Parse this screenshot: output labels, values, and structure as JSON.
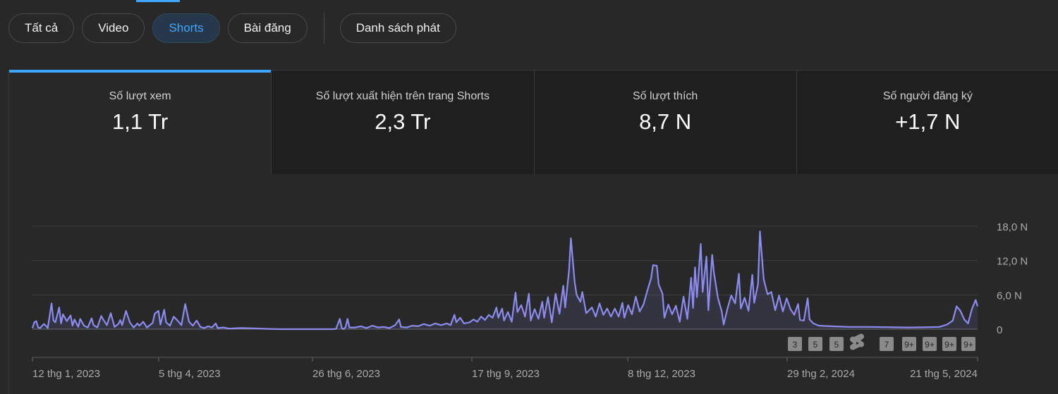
{
  "tabs": {
    "items": [
      {
        "label": "Tất cả",
        "active": false
      },
      {
        "label": "Video",
        "active": false
      },
      {
        "label": "Shorts",
        "active": true
      },
      {
        "label": "Bài đăng",
        "active": false
      }
    ],
    "playlist_label": "Danh sách phát"
  },
  "metrics": [
    {
      "label": "Số lượt xem",
      "value": "1,1 Tr",
      "active": true
    },
    {
      "label": "Số lượt xuất hiện trên trang Shorts",
      "value": "2,3 Tr",
      "active": false
    },
    {
      "label": "Số lượt thích",
      "value": "8,7 N",
      "active": false
    },
    {
      "label": "Số người đăng ký",
      "value": "+1,7 N",
      "active": false
    }
  ],
  "colors": {
    "accent": "#3ea6ff",
    "line": "#8d8bf0",
    "background": "#282828",
    "card": "#1f1f1f"
  },
  "chart_data": {
    "type": "area",
    "metric": "Số lượt xem",
    "x_range": [
      "2023-01-12",
      "2024-05-21"
    ],
    "ylim": [
      0,
      18000
    ],
    "y_ticks": [
      "0",
      "6,0 N",
      "12,0 N",
      "18,0 N"
    ],
    "x_ticks": [
      "12 thg 1, 2023",
      "5 thg 4, 2023",
      "26 thg 6, 2023",
      "17 thg 9, 2023",
      "8 thg 12, 2023",
      "29 thg 2, 2024",
      "21 thg 5, 2024"
    ],
    "grid": true,
    "markers": [
      {
        "label": "3",
        "date": "2024-03-07"
      },
      {
        "label": "5",
        "date": "2024-03-17"
      },
      {
        "label": "5",
        "date": "2024-03-26"
      },
      {
        "label": "shorts-icon",
        "date": "2024-04-05"
      },
      {
        "label": "7",
        "date": "2024-04-20"
      },
      {
        "label": "9+",
        "date": "2024-05-01"
      },
      {
        "label": "9+",
        "date": "2024-05-11"
      },
      {
        "label": "9+",
        "date": "2024-05-20"
      },
      {
        "label": "9+",
        "date": "2024-05-30"
      }
    ],
    "series": [
      {
        "points": [
          [
            "2023-01-12",
            200
          ],
          [
            "2023-01-13",
            1200
          ],
          [
            "2023-01-14",
            1400
          ],
          [
            "2023-01-15",
            300
          ],
          [
            "2023-01-16",
            200
          ],
          [
            "2023-01-18",
            900
          ],
          [
            "2023-01-19",
            600
          ],
          [
            "2023-01-20",
            200
          ],
          [
            "2023-01-22",
            4500
          ],
          [
            "2023-01-23",
            1500
          ],
          [
            "2023-01-24",
            1200
          ],
          [
            "2023-01-26",
            3800
          ],
          [
            "2023-01-27",
            1000
          ],
          [
            "2023-01-28",
            2600
          ],
          [
            "2023-01-30",
            1400
          ],
          [
            "2023-02-01",
            2400
          ],
          [
            "2023-02-02",
            600
          ],
          [
            "2023-02-03",
            1700
          ],
          [
            "2023-02-05",
            400
          ],
          [
            "2023-02-06",
            1800
          ],
          [
            "2023-02-08",
            600
          ],
          [
            "2023-02-10",
            300
          ],
          [
            "2023-02-12",
            1900
          ],
          [
            "2023-02-13",
            700
          ],
          [
            "2023-02-15",
            300
          ],
          [
            "2023-02-17",
            2300
          ],
          [
            "2023-02-18",
            1700
          ],
          [
            "2023-02-20",
            700
          ],
          [
            "2023-02-22",
            2800
          ],
          [
            "2023-02-24",
            400
          ],
          [
            "2023-02-26",
            900
          ],
          [
            "2023-02-27",
            1600
          ],
          [
            "2023-02-28",
            700
          ],
          [
            "2023-03-02",
            3200
          ],
          [
            "2023-03-04",
            1200
          ],
          [
            "2023-03-06",
            300
          ],
          [
            "2023-03-08",
            1000
          ],
          [
            "2023-03-09",
            600
          ],
          [
            "2023-03-11",
            1300
          ],
          [
            "2023-03-13",
            300
          ],
          [
            "2023-03-16",
            1100
          ],
          [
            "2023-03-17",
            2700
          ],
          [
            "2023-03-19",
            3200
          ],
          [
            "2023-03-20",
            800
          ],
          [
            "2023-03-22",
            3400
          ],
          [
            "2023-03-23",
            1200
          ],
          [
            "2023-03-25",
            600
          ],
          [
            "2023-03-27",
            2200
          ],
          [
            "2023-03-29",
            1500
          ],
          [
            "2023-03-31",
            700
          ],
          [
            "2023-04-02",
            4400
          ],
          [
            "2023-04-04",
            1300
          ],
          [
            "2023-04-06",
            600
          ],
          [
            "2023-04-08",
            1500
          ],
          [
            "2023-04-10",
            400
          ],
          [
            "2023-04-12",
            200
          ],
          [
            "2023-04-14",
            500
          ],
          [
            "2023-04-16",
            300
          ],
          [
            "2023-04-18",
            1000
          ],
          [
            "2023-04-19",
            200
          ],
          [
            "2023-04-22",
            300
          ],
          [
            "2023-04-25",
            100
          ],
          [
            "2023-05-01",
            200
          ],
          [
            "2023-05-08",
            150
          ],
          [
            "2023-05-15",
            50
          ],
          [
            "2023-05-22",
            0
          ],
          [
            "2023-06-01",
            0
          ],
          [
            "2023-06-10",
            0
          ],
          [
            "2023-06-15",
            0
          ],
          [
            "2023-06-18",
            0
          ],
          [
            "2023-06-20",
            50
          ],
          [
            "2023-06-22",
            1800
          ],
          [
            "2023-06-23",
            200
          ],
          [
            "2023-06-24",
            0
          ],
          [
            "2023-06-25",
            400
          ],
          [
            "2023-06-26",
            1800
          ],
          [
            "2023-06-27",
            300
          ],
          [
            "2023-06-30",
            300
          ],
          [
            "2023-07-03",
            500
          ],
          [
            "2023-07-06",
            200
          ],
          [
            "2023-07-09",
            600
          ],
          [
            "2023-07-12",
            300
          ],
          [
            "2023-07-15",
            400
          ],
          [
            "2023-07-18",
            200
          ],
          [
            "2023-07-21",
            700
          ],
          [
            "2023-07-23",
            1700
          ],
          [
            "2023-07-24",
            400
          ],
          [
            "2023-07-27",
            300
          ],
          [
            "2023-07-30",
            600
          ],
          [
            "2023-08-02",
            500
          ],
          [
            "2023-08-05",
            900
          ],
          [
            "2023-08-08",
            600
          ],
          [
            "2023-08-11",
            1000
          ],
          [
            "2023-08-14",
            700
          ],
          [
            "2023-08-17",
            1000
          ],
          [
            "2023-08-19",
            700
          ],
          [
            "2023-08-21",
            2500
          ],
          [
            "2023-08-22",
            1200
          ],
          [
            "2023-08-24",
            2000
          ],
          [
            "2023-08-26",
            1000
          ],
          [
            "2023-08-29",
            1200
          ],
          [
            "2023-08-31",
            1700
          ],
          [
            "2023-09-02",
            1300
          ],
          [
            "2023-09-04",
            2200
          ],
          [
            "2023-09-06",
            1600
          ],
          [
            "2023-09-08",
            2500
          ],
          [
            "2023-09-10",
            2000
          ],
          [
            "2023-09-12",
            3800
          ],
          [
            "2023-09-13",
            2000
          ],
          [
            "2023-09-15",
            3600
          ],
          [
            "2023-09-16",
            1500
          ],
          [
            "2023-09-18",
            3000
          ],
          [
            "2023-09-20",
            1300
          ],
          [
            "2023-09-22",
            6400
          ],
          [
            "2023-09-23",
            3000
          ],
          [
            "2023-09-25",
            4200
          ],
          [
            "2023-09-27",
            2200
          ],
          [
            "2023-09-29",
            6200
          ],
          [
            "2023-09-30",
            1500
          ],
          [
            "2023-10-02",
            3500
          ],
          [
            "2023-10-04",
            1800
          ],
          [
            "2023-10-06",
            4800
          ],
          [
            "2023-10-07",
            2000
          ],
          [
            "2023-10-09",
            5600
          ],
          [
            "2023-10-11",
            1200
          ],
          [
            "2023-10-13",
            6200
          ],
          [
            "2023-10-15",
            2700
          ],
          [
            "2023-10-17",
            7600
          ],
          [
            "2023-10-18",
            3800
          ],
          [
            "2023-10-20",
            10200
          ],
          [
            "2023-10-21",
            15900
          ],
          [
            "2023-10-23",
            8200
          ],
          [
            "2023-10-24",
            6000
          ],
          [
            "2023-10-26",
            4800
          ],
          [
            "2023-10-27",
            6500
          ],
          [
            "2023-10-29",
            2800
          ],
          [
            "2023-11-01",
            3800
          ],
          [
            "2023-11-03",
            2200
          ],
          [
            "2023-11-05",
            4500
          ],
          [
            "2023-11-07",
            2500
          ],
          [
            "2023-11-09",
            3600
          ],
          [
            "2023-11-11",
            2200
          ],
          [
            "2023-11-13",
            3600
          ],
          [
            "2023-11-15",
            2200
          ],
          [
            "2023-11-17",
            4600
          ],
          [
            "2023-11-18",
            2000
          ],
          [
            "2023-11-20",
            4200
          ],
          [
            "2023-11-22",
            2600
          ],
          [
            "2023-11-24",
            5700
          ],
          [
            "2023-11-26",
            3100
          ],
          [
            "2023-11-28",
            4300
          ],
          [
            "2023-11-30",
            6700
          ],
          [
            "2023-12-02",
            8900
          ],
          [
            "2023-12-03",
            11200
          ],
          [
            "2023-12-05",
            11100
          ],
          [
            "2023-12-06",
            7800
          ],
          [
            "2023-12-08",
            6200
          ],
          [
            "2023-12-09",
            2000
          ],
          [
            "2023-12-11",
            4300
          ],
          [
            "2023-12-13",
            2600
          ],
          [
            "2023-12-15",
            4100
          ],
          [
            "2023-12-17",
            1300
          ],
          [
            "2023-12-19",
            5700
          ],
          [
            "2023-12-21",
            1800
          ],
          [
            "2023-12-23",
            9000
          ],
          [
            "2023-12-24",
            3700
          ],
          [
            "2023-12-25",
            10800
          ],
          [
            "2023-12-26",
            5600
          ],
          [
            "2023-12-28",
            14900
          ],
          [
            "2023-12-29",
            6500
          ],
          [
            "2023-12-31",
            12700
          ],
          [
            "2024-01-01",
            3300
          ],
          [
            "2024-01-03",
            13000
          ],
          [
            "2024-01-04",
            9700
          ],
          [
            "2024-01-06",
            5500
          ],
          [
            "2024-01-08",
            3100
          ],
          [
            "2024-01-09",
            800
          ],
          [
            "2024-01-11",
            3600
          ],
          [
            "2024-01-13",
            5900
          ],
          [
            "2024-01-15",
            4500
          ],
          [
            "2024-01-17",
            9700
          ],
          [
            "2024-01-18",
            3600
          ],
          [
            "2024-01-20",
            5500
          ],
          [
            "2024-01-22",
            3200
          ],
          [
            "2024-01-24",
            9500
          ],
          [
            "2024-01-25",
            4600
          ],
          [
            "2024-01-27",
            7900
          ],
          [
            "2024-01-28",
            17100
          ],
          [
            "2024-01-30",
            8700
          ],
          [
            "2024-02-01",
            6100
          ],
          [
            "2024-02-03",
            6500
          ],
          [
            "2024-02-05",
            3300
          ],
          [
            "2024-02-07",
            5900
          ],
          [
            "2024-02-09",
            3100
          ],
          [
            "2024-02-11",
            5400
          ],
          [
            "2024-02-13",
            3500
          ],
          [
            "2024-02-15",
            2500
          ],
          [
            "2024-02-17",
            4400
          ],
          [
            "2024-02-18",
            1600
          ],
          [
            "2024-02-20",
            1500
          ],
          [
            "2024-02-22",
            5400
          ],
          [
            "2024-02-23",
            1700
          ],
          [
            "2024-02-25",
            1000
          ],
          [
            "2024-02-28",
            600
          ],
          [
            "2024-03-05",
            500
          ],
          [
            "2024-03-15",
            400
          ],
          [
            "2024-03-25",
            400
          ],
          [
            "2024-04-05",
            350
          ],
          [
            "2024-04-15",
            300
          ],
          [
            "2024-04-25",
            350
          ],
          [
            "2024-05-01",
            400
          ],
          [
            "2024-05-05",
            800
          ],
          [
            "2024-05-08",
            1500
          ],
          [
            "2024-05-10",
            4000
          ],
          [
            "2024-05-12",
            3200
          ],
          [
            "2024-05-14",
            1700
          ],
          [
            "2024-05-16",
            1000
          ],
          [
            "2024-05-18",
            3500
          ],
          [
            "2024-05-20",
            5100
          ],
          [
            "2024-05-21",
            4000
          ]
        ]
      }
    ]
  }
}
